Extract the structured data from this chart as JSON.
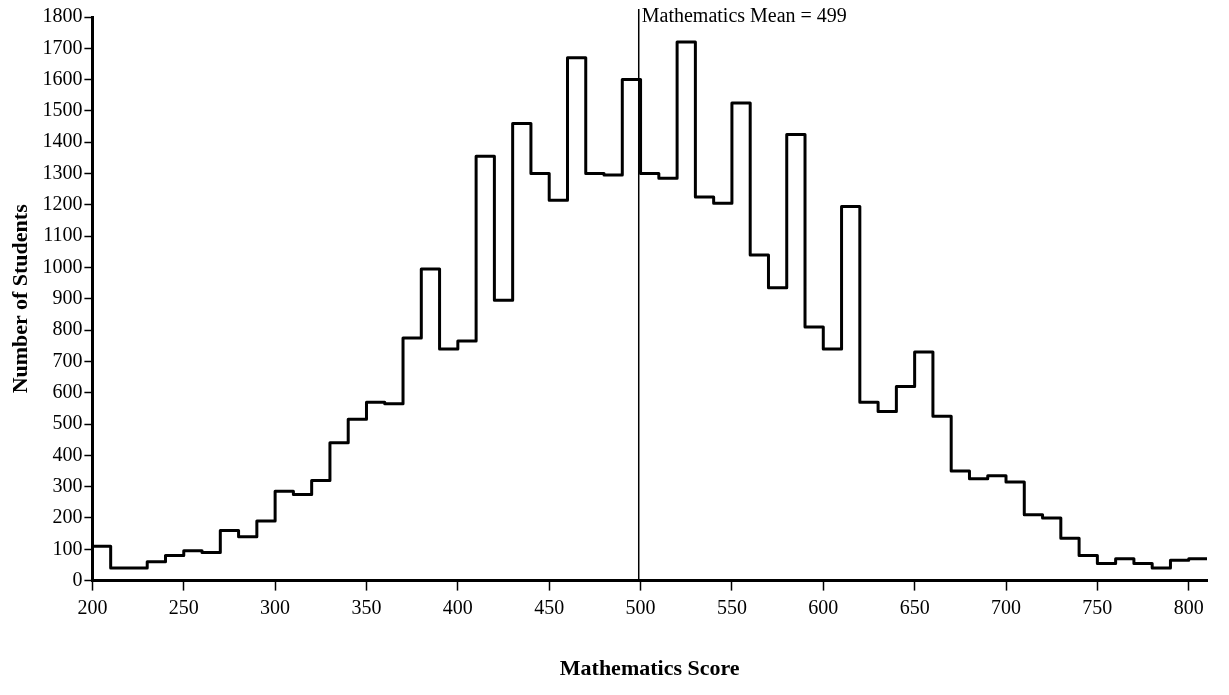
{
  "chart_data": {
    "type": "histogram",
    "xlabel": "Mathematics Score",
    "ylabel": "Number of Students",
    "bins": [
      200,
      210,
      220,
      230,
      240,
      250,
      260,
      270,
      280,
      290,
      300,
      310,
      320,
      330,
      340,
      350,
      360,
      370,
      380,
      390,
      400,
      410,
      420,
      430,
      440,
      450,
      460,
      470,
      480,
      490,
      500,
      510,
      520,
      530,
      540,
      550,
      560,
      570,
      580,
      590,
      600,
      610,
      620,
      630,
      640,
      650,
      660,
      670,
      680,
      690,
      700,
      710,
      720,
      730,
      740,
      750,
      760,
      770,
      780,
      790,
      800,
      810
    ],
    "values": [
      110,
      40,
      40,
      60,
      80,
      95,
      90,
      160,
      140,
      190,
      285,
      275,
      320,
      440,
      515,
      570,
      565,
      775,
      995,
      740,
      765,
      1355,
      895,
      1460,
      1300,
      1215,
      1670,
      1300,
      1295,
      1600,
      1300,
      1285,
      1720,
      1225,
      1205,
      1525,
      1040,
      935,
      1425,
      810,
      740,
      1195,
      570,
      540,
      620,
      730,
      525,
      350,
      325,
      335,
      315,
      210,
      200,
      135,
      80,
      55,
      70,
      55,
      40,
      65,
      70
    ],
    "color": "#000000",
    "xlim": [
      200,
      810
    ],
    "xticks": [
      200,
      250,
      300,
      350,
      400,
      450,
      500,
      550,
      600,
      650,
      700,
      750,
      800
    ],
    "ylim": [
      0,
      1800
    ],
    "yticks": [
      0,
      100,
      200,
      300,
      400,
      500,
      600,
      700,
      800,
      900,
      1000,
      1100,
      1200,
      1300,
      1400,
      1500,
      1600,
      1700,
      1800
    ],
    "ref_lines": [
      {
        "axis": "x",
        "value": 499,
        "label": "Mathematics Mean = 499"
      }
    ]
  }
}
